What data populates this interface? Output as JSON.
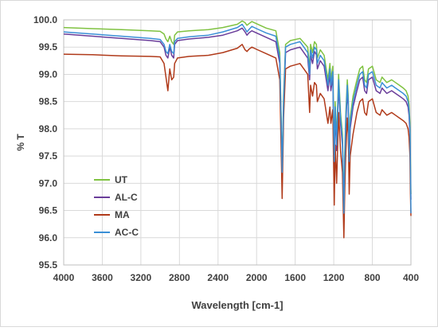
{
  "chart_data": {
    "type": "line",
    "title": "",
    "xlabel": "Wavelength [cm-1]",
    "ylabel": "% T",
    "xlim": [
      4000,
      400
    ],
    "xlim_note": "",
    "x_reversed": true,
    "ylim": [
      95.5,
      100.0
    ],
    "grid": true,
    "legend_position": "center-left",
    "x_ticks": [
      4000,
      3600,
      3200,
      2800,
      2400,
      2000,
      1600,
      1200,
      800,
      400
    ],
    "y_ticks": [
      95.5,
      96.0,
      96.5,
      97.0,
      97.5,
      98.0,
      98.5,
      99.0,
      99.5,
      100.0
    ],
    "x_tick_labels": [
      "4000",
      "3600",
      "3200",
      "2800",
      "2400",
      "2000",
      "1600",
      "1200",
      "800",
      "400"
    ],
    "y_tick_labels": [
      "95.5",
      "96.0",
      "96.5",
      "97.0",
      "97.5",
      "98.0",
      "98.5",
      "99.0",
      "99.5",
      "100.0"
    ],
    "series": [
      {
        "name": "UT",
        "color": "#7fc241",
        "x": [
          4000,
          3700,
          3400,
          3100,
          3000,
          2960,
          2940,
          2920,
          2900,
          2880,
          2860,
          2850,
          2820,
          2700,
          2500,
          2350,
          2200,
          2150,
          2120,
          2100,
          2080,
          2050,
          2000,
          1900,
          1800,
          1760,
          1745,
          1735,
          1720,
          1700,
          1650,
          1550,
          1470,
          1450,
          1440,
          1420,
          1400,
          1380,
          1370,
          1340,
          1300,
          1260,
          1240,
          1230,
          1210,
          1195,
          1185,
          1170,
          1150,
          1130,
          1110,
          1095,
          1085,
          1075,
          1060,
          1050,
          1040,
          1030,
          1000,
          960,
          930,
          900,
          880,
          860,
          840,
          800,
          760,
          720,
          700,
          650,
          600,
          560,
          520,
          480,
          450,
          430,
          420,
          410,
          405,
          400
        ],
        "y": [
          99.86,
          99.84,
          99.82,
          99.8,
          99.79,
          99.74,
          99.65,
          99.6,
          99.7,
          99.6,
          99.55,
          99.72,
          99.78,
          99.8,
          99.82,
          99.86,
          99.92,
          99.98,
          99.95,
          99.9,
          99.93,
          99.97,
          99.93,
          99.85,
          99.8,
          99.4,
          98.2,
          97.25,
          98.6,
          99.55,
          99.62,
          99.66,
          99.5,
          99.1,
          99.55,
          99.4,
          99.6,
          99.55,
          99.3,
          99.45,
          99.35,
          98.9,
          99.2,
          98.9,
          99.15,
          97.5,
          98.5,
          97.8,
          99.0,
          98.3,
          97.9,
          96.6,
          97.6,
          98.3,
          98.9,
          98.6,
          97.5,
          98.2,
          98.6,
          98.9,
          99.1,
          99.15,
          98.9,
          98.85,
          99.1,
          99.15,
          98.9,
          98.85,
          98.95,
          98.85,
          98.9,
          98.85,
          98.8,
          98.75,
          98.7,
          98.6,
          98.45,
          98.1,
          97.4,
          96.8
        ]
      },
      {
        "name": "AL-C",
        "color": "#6a3d9a",
        "x": [
          4000,
          3700,
          3400,
          3100,
          3000,
          2960,
          2940,
          2920,
          2900,
          2880,
          2860,
          2850,
          2820,
          2700,
          2500,
          2350,
          2200,
          2150,
          2120,
          2100,
          2080,
          2050,
          2000,
          1900,
          1800,
          1760,
          1745,
          1735,
          1720,
          1700,
          1650,
          1550,
          1470,
          1450,
          1440,
          1420,
          1400,
          1380,
          1370,
          1340,
          1300,
          1260,
          1240,
          1230,
          1210,
          1195,
          1185,
          1170,
          1150,
          1130,
          1110,
          1095,
          1085,
          1075,
          1060,
          1050,
          1040,
          1030,
          1000,
          960,
          930,
          900,
          880,
          860,
          840,
          800,
          760,
          720,
          700,
          650,
          600,
          560,
          520,
          480,
          450,
          430,
          420,
          410,
          405,
          400
        ],
        "y": [
          99.74,
          99.7,
          99.66,
          99.62,
          99.6,
          99.5,
          99.35,
          99.3,
          99.5,
          99.35,
          99.3,
          99.55,
          99.62,
          99.65,
          99.68,
          99.72,
          99.8,
          99.85,
          99.78,
          99.72,
          99.76,
          99.8,
          99.76,
          99.68,
          99.6,
          99.2,
          98.0,
          97.15,
          98.4,
          99.4,
          99.45,
          99.5,
          99.3,
          98.9,
          99.35,
          99.2,
          99.42,
          99.36,
          99.1,
          99.25,
          99.15,
          98.7,
          99.0,
          98.7,
          98.95,
          97.3,
          98.3,
          97.6,
          98.8,
          98.1,
          97.7,
          96.5,
          97.4,
          98.1,
          98.7,
          98.4,
          97.3,
          98.0,
          98.4,
          98.7,
          98.9,
          98.95,
          98.7,
          98.65,
          98.9,
          98.95,
          98.7,
          98.65,
          98.75,
          98.65,
          98.7,
          98.65,
          98.6,
          98.55,
          98.5,
          98.4,
          98.25,
          97.9,
          97.2,
          96.7
        ]
      },
      {
        "name": "MA",
        "color": "#b03a1a",
        "x": [
          4000,
          3700,
          3400,
          3100,
          3000,
          2960,
          2940,
          2920,
          2900,
          2880,
          2860,
          2850,
          2820,
          2700,
          2500,
          2350,
          2200,
          2150,
          2120,
          2100,
          2080,
          2050,
          2000,
          1900,
          1800,
          1760,
          1745,
          1735,
          1720,
          1700,
          1650,
          1550,
          1470,
          1450,
          1440,
          1420,
          1400,
          1380,
          1370,
          1340,
          1300,
          1260,
          1240,
          1230,
          1210,
          1195,
          1185,
          1170,
          1150,
          1130,
          1110,
          1095,
          1085,
          1075,
          1060,
          1050,
          1040,
          1030,
          1000,
          960,
          930,
          900,
          880,
          860,
          840,
          800,
          760,
          720,
          700,
          650,
          600,
          560,
          520,
          480,
          450,
          430,
          420,
          410,
          405,
          400
        ],
        "y": [
          99.37,
          99.36,
          99.34,
          99.33,
          99.32,
          99.2,
          98.95,
          98.7,
          99.1,
          98.9,
          98.95,
          99.2,
          99.3,
          99.33,
          99.35,
          99.4,
          99.48,
          99.55,
          99.45,
          99.42,
          99.46,
          99.5,
          99.46,
          99.38,
          99.3,
          98.9,
          97.6,
          96.72,
          98.2,
          99.1,
          99.15,
          99.2,
          99.0,
          98.3,
          98.8,
          98.6,
          98.85,
          98.8,
          98.5,
          98.65,
          98.55,
          98.1,
          98.4,
          98.1,
          98.35,
          96.6,
          97.7,
          97.0,
          98.3,
          97.6,
          97.2,
          96.0,
          96.9,
          97.6,
          98.2,
          97.9,
          96.8,
          97.5,
          97.9,
          98.3,
          98.5,
          98.55,
          98.3,
          98.25,
          98.5,
          98.55,
          98.3,
          98.25,
          98.35,
          98.25,
          98.3,
          98.25,
          98.2,
          98.15,
          98.1,
          98.0,
          97.85,
          97.5,
          96.8,
          96.4
        ]
      },
      {
        "name": "AC-C",
        "color": "#3a8fd6",
        "x": [
          4000,
          3700,
          3400,
          3100,
          3000,
          2960,
          2940,
          2920,
          2900,
          2880,
          2860,
          2850,
          2820,
          2700,
          2500,
          2350,
          2200,
          2150,
          2120,
          2100,
          2080,
          2050,
          2000,
          1900,
          1800,
          1760,
          1745,
          1735,
          1720,
          1700,
          1650,
          1550,
          1470,
          1450,
          1440,
          1420,
          1400,
          1380,
          1370,
          1340,
          1300,
          1260,
          1240,
          1230,
          1210,
          1195,
          1185,
          1170,
          1150,
          1130,
          1110,
          1095,
          1085,
          1075,
          1060,
          1050,
          1040,
          1030,
          1000,
          960,
          930,
          900,
          880,
          860,
          840,
          800,
          760,
          720,
          700,
          650,
          600,
          560,
          520,
          480,
          450,
          430,
          420,
          410,
          405,
          400
        ],
        "y": [
          99.78,
          99.74,
          99.7,
          99.66,
          99.64,
          99.55,
          99.42,
          99.38,
          99.55,
          99.42,
          99.38,
          99.6,
          99.66,
          99.69,
          99.72,
          99.78,
          99.86,
          99.92,
          99.84,
          99.78,
          99.82,
          99.88,
          99.84,
          99.76,
          99.7,
          99.3,
          98.1,
          97.2,
          98.5,
          99.5,
          99.55,
          99.6,
          99.4,
          99.0,
          99.45,
          99.3,
          99.5,
          99.45,
          99.2,
          99.35,
          99.25,
          98.8,
          99.1,
          98.8,
          99.05,
          97.4,
          98.4,
          97.7,
          98.9,
          98.2,
          97.8,
          96.45,
          97.5,
          98.2,
          98.8,
          98.5,
          97.4,
          98.1,
          98.5,
          98.8,
          99.0,
          99.05,
          98.8,
          98.75,
          99.0,
          99.05,
          98.8,
          98.75,
          98.85,
          98.75,
          98.8,
          98.75,
          98.7,
          98.65,
          98.6,
          98.5,
          98.35,
          98.0,
          97.3,
          96.45
        ]
      }
    ]
  }
}
